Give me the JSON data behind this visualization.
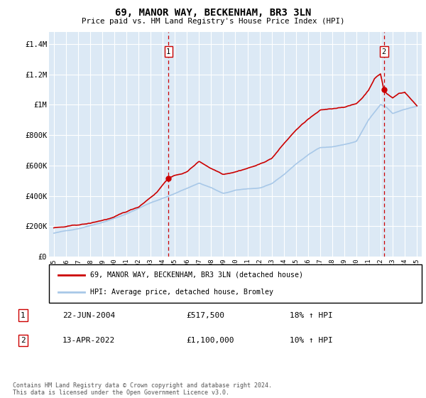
{
  "title": "69, MANOR WAY, BECKENHAM, BR3 3LN",
  "subtitle": "Price paid vs. HM Land Registry's House Price Index (HPI)",
  "ylabel_ticks": [
    "£0",
    "£200K",
    "£400K",
    "£600K",
    "£800K",
    "£1M",
    "£1.2M",
    "£1.4M"
  ],
  "ytick_vals": [
    0,
    200000,
    400000,
    600000,
    800000,
    1000000,
    1200000,
    1400000
  ],
  "ylim": [
    0,
    1480000
  ],
  "background_color": "#dce9f5",
  "red_color": "#cc0000",
  "blue_color": "#a8c8e8",
  "marker1_year": 2004.47,
  "marker1_price": 517500,
  "marker2_year": 2022.28,
  "marker2_price": 1100000,
  "legend_line1": "69, MANOR WAY, BECKENHAM, BR3 3LN (detached house)",
  "legend_line2": "HPI: Average price, detached house, Bromley",
  "annotation1_label": "1",
  "annotation1_date": "22-JUN-2004",
  "annotation1_price": "£517,500",
  "annotation1_hpi": "18% ↑ HPI",
  "annotation2_label": "2",
  "annotation2_date": "13-APR-2022",
  "annotation2_price": "£1,100,000",
  "annotation2_hpi": "10% ↑ HPI",
  "footnote": "Contains HM Land Registry data © Crown copyright and database right 2024.\nThis data is licensed under the Open Government Licence v3.0."
}
